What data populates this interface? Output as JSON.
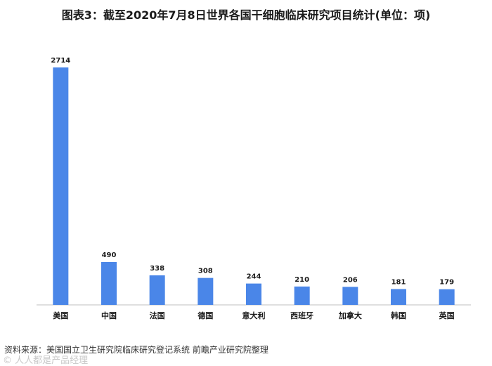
{
  "page": {
    "title": "图表3：截至2020年7月8日世界各国干细胞临床研究项目统计(单位：项)",
    "source": "资料来源：美国国立卫生研究院临床研究登记系统 前瞻产业研究院整理",
    "watermark": "© 人人都是产品经理"
  },
  "colors": {
    "bar": "#4a86e8",
    "axis": "#bfbfbf",
    "label": "#1a1a1a"
  },
  "chart_data": {
    "type": "bar",
    "categories": [
      "美国",
      "中国",
      "法国",
      "德国",
      "意大利",
      "西班牙",
      "加拿大",
      "韩国",
      "英国"
    ],
    "values": [
      2714,
      490,
      338,
      308,
      244,
      210,
      206,
      181,
      179
    ],
    "ylim": [
      0,
      2750
    ],
    "grid": false,
    "legend": "none"
  }
}
